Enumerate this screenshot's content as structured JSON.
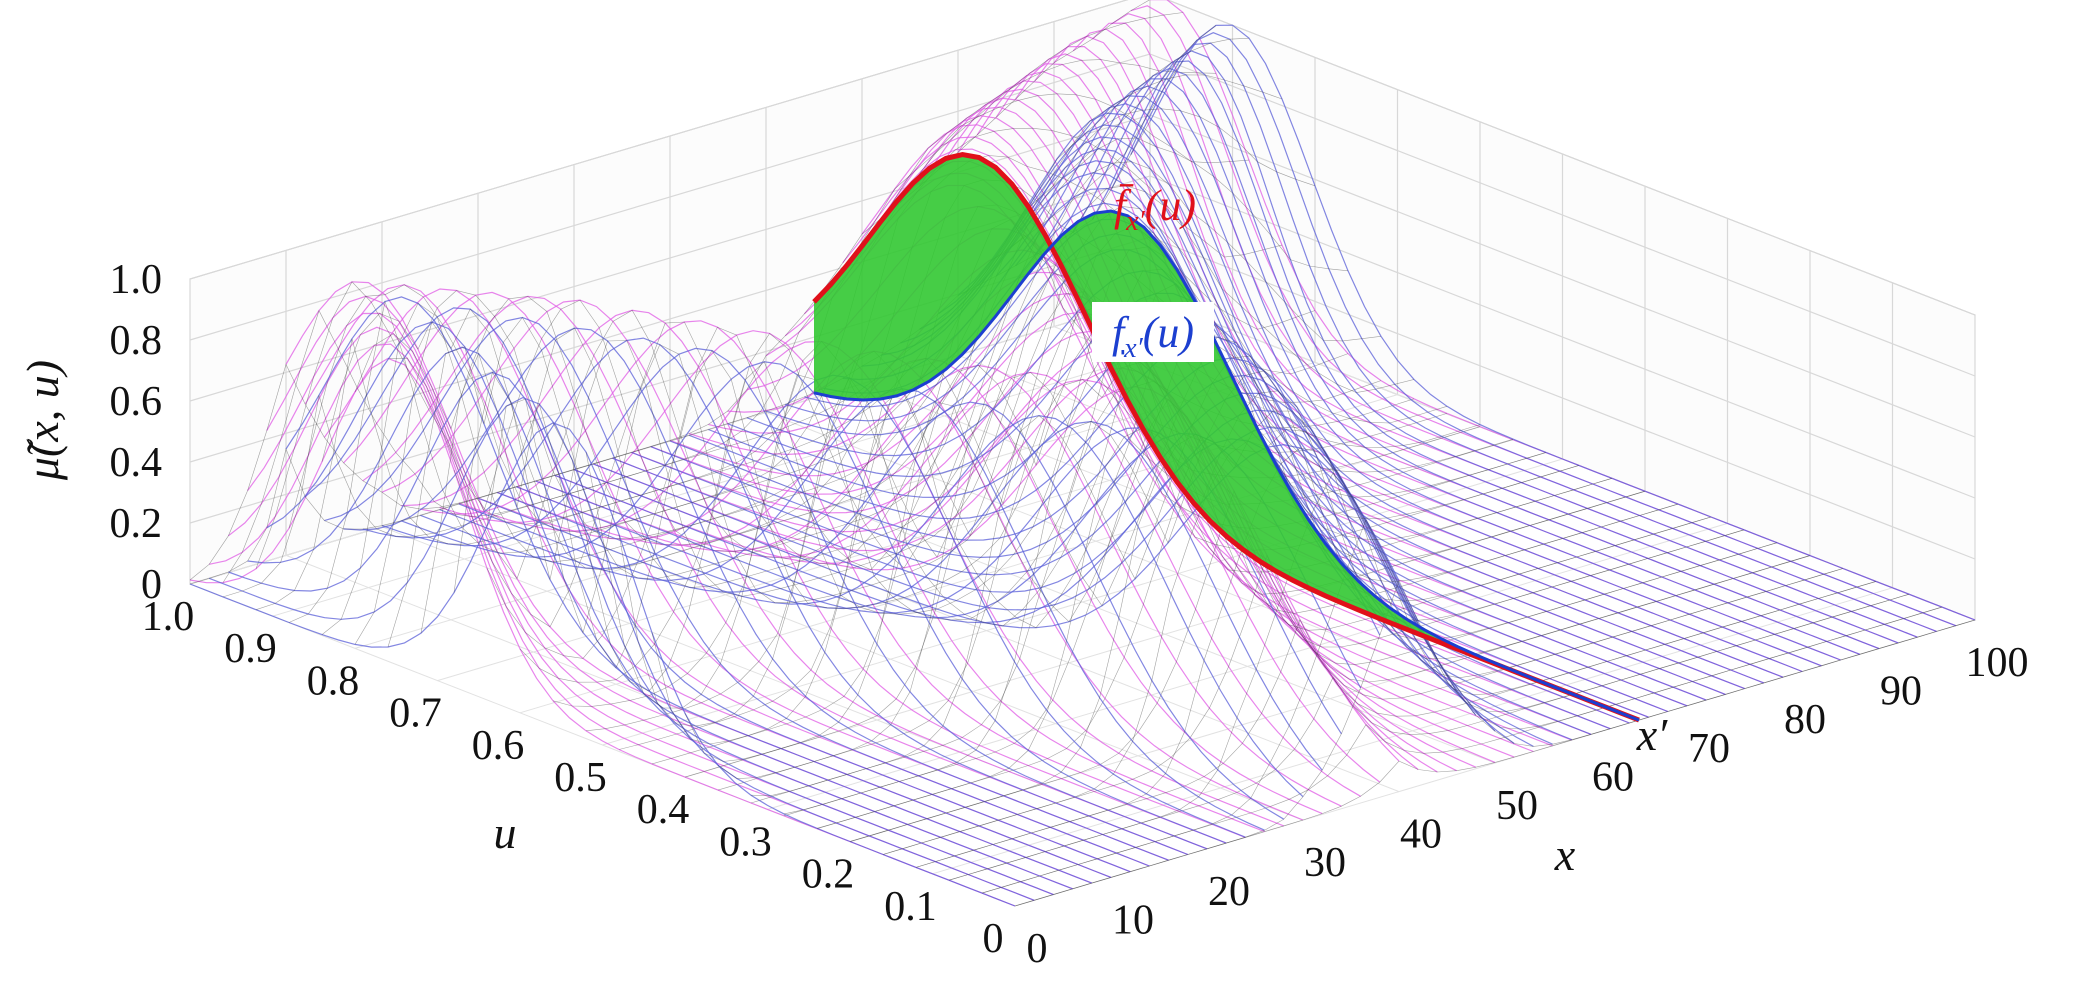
{
  "chart_data": {
    "type": "surface3d",
    "zlabel": "μ̃(x, u)",
    "xlabel": "x",
    "ylabel": "u",
    "x_ticks": [
      "0",
      "10",
      "20",
      "30",
      "40",
      "50",
      "60",
      "70",
      "80",
      "90",
      "100"
    ],
    "u_ticks": [
      "0",
      "0.1",
      "0.2",
      "0.3",
      "0.4",
      "0.5",
      "0.6",
      "0.7",
      "0.8",
      "0.9",
      "1.0"
    ],
    "z_ticks": [
      "0",
      "0.2",
      "0.4",
      "0.6",
      "0.8",
      "1.0"
    ],
    "xlim": [
      0,
      100
    ],
    "ulim": [
      0,
      1
    ],
    "zlim": [
      0,
      1
    ],
    "grid": true,
    "xprime_value": 65,
    "xprime_label": "x′",
    "annotations": {
      "upper": {
        "text": "f̄x′(u)",
        "color": "#e0101a"
      },
      "lower": {
        "text": "f_x′(u)",
        "color": "#1c3fd0"
      }
    },
    "series": [
      {
        "color": "#e05ce6",
        "description_peak_u": [
          0.75,
          0.9,
          0.75,
          0.5,
          0.3,
          0.5,
          0.75,
          0.85,
          0.9,
          0.95,
          0.98
        ],
        "x": [
          0,
          10,
          20,
          30,
          40,
          50,
          60,
          70,
          80,
          90,
          100
        ]
      },
      {
        "color": "#5a5fd8",
        "description_peak_u": [
          0.55,
          0.85,
          0.6,
          0.3,
          0.12,
          0.3,
          0.55,
          0.7,
          0.8,
          0.85,
          0.9
        ],
        "x": [
          0,
          10,
          20,
          30,
          40,
          50,
          60,
          70,
          80,
          90,
          100
        ]
      }
    ],
    "slice_color": "#32c832"
  }
}
